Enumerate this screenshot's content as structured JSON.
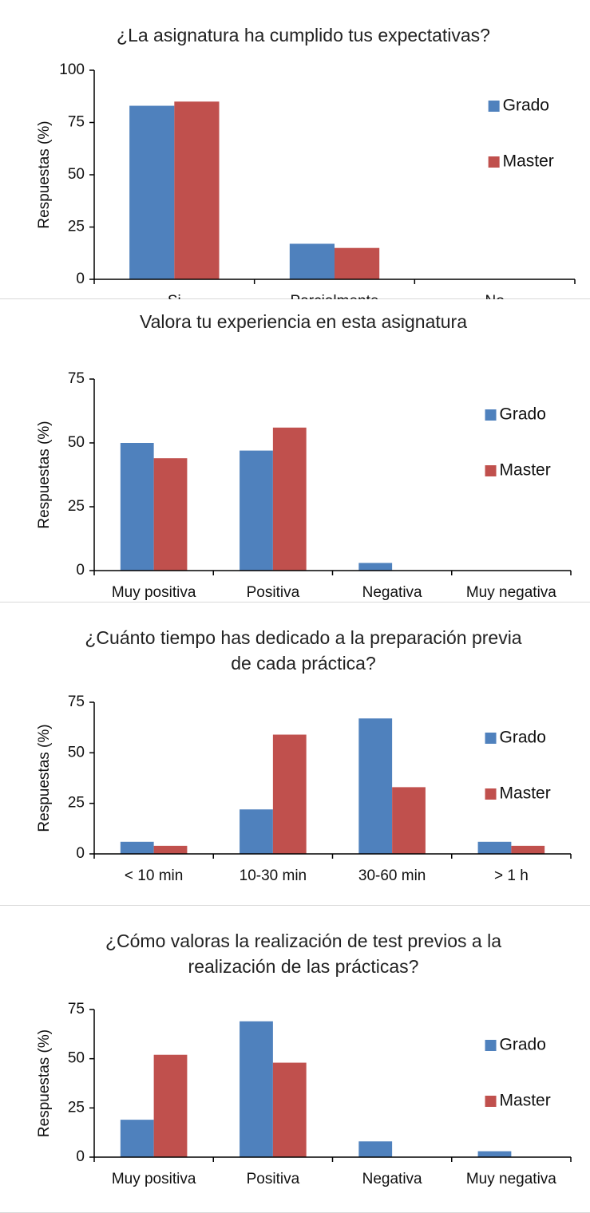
{
  "chart_data": [
    {
      "type": "bar",
      "title": "¿La asignatura ha cumplido tus expectativas?",
      "ylabel": "Respuestas (%)",
      "categories": [
        "Si",
        "Parcialmente",
        "No"
      ],
      "series": [
        {
          "name": "Grado",
          "color": "#4f81bd",
          "values": [
            83,
            17,
            0
          ]
        },
        {
          "name": "Master",
          "color": "#c0504d",
          "values": [
            85,
            15,
            0
          ]
        }
      ],
      "ylim": [
        0,
        100
      ],
      "yticks": [
        0,
        25,
        50,
        75,
        100
      ],
      "legend": "right"
    },
    {
      "type": "bar",
      "title": "Valora tu experiencia en esta asignatura",
      "ylabel": "Respuestas (%)",
      "categories": [
        "Muy positiva",
        "Positiva",
        "Negativa",
        "Muy negativa"
      ],
      "series": [
        {
          "name": "Grado",
          "color": "#4f81bd",
          "values": [
            50,
            47,
            3,
            0
          ]
        },
        {
          "name": "Master",
          "color": "#c0504d",
          "values": [
            44,
            56,
            0,
            0
          ]
        }
      ],
      "ylim": [
        0,
        75
      ],
      "yticks": [
        0,
        25,
        50,
        75
      ],
      "legend": "right"
    },
    {
      "type": "bar",
      "title": "¿Cuánto tiempo has dedicado a la preparación previa de cada práctica?",
      "ylabel": "Respuestas (%)",
      "categories": [
        "< 10 min",
        "10-30 min",
        "30-60 min",
        "> 1 h"
      ],
      "series": [
        {
          "name": "Grado",
          "color": "#4f81bd",
          "values": [
            6,
            22,
            67,
            6
          ]
        },
        {
          "name": "Master",
          "color": "#c0504d",
          "values": [
            4,
            59,
            33,
            4
          ]
        }
      ],
      "ylim": [
        0,
        75
      ],
      "yticks": [
        0,
        25,
        50,
        75
      ],
      "legend": "right"
    },
    {
      "type": "bar",
      "title": "¿Cómo valoras la realización de test previos a la realización de las prácticas?",
      "ylabel": "Respuestas (%)",
      "categories": [
        "Muy positiva",
        "Positiva",
        "Negativa",
        "Muy negativa"
      ],
      "series": [
        {
          "name": "Grado",
          "color": "#4f81bd",
          "values": [
            19,
            69,
            8,
            3
          ]
        },
        {
          "name": "Master",
          "color": "#c0504d",
          "values": [
            52,
            48,
            0,
            0
          ]
        }
      ],
      "ylim": [
        0,
        75
      ],
      "yticks": [
        0,
        25,
        50,
        75
      ],
      "legend": "right"
    }
  ]
}
